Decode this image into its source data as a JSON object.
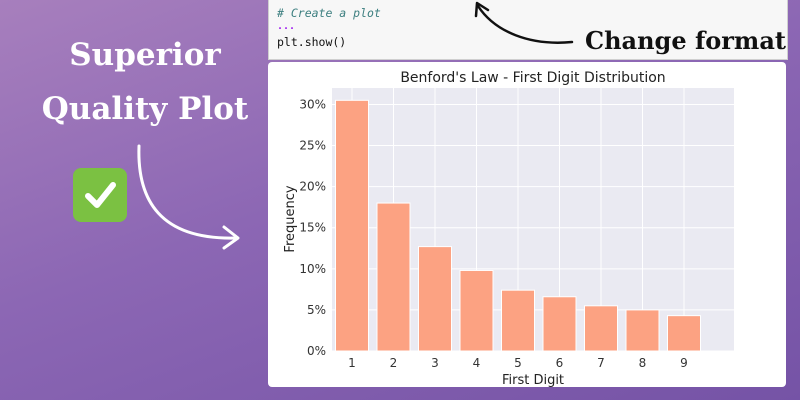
{
  "headline": {
    "line1": "Superior",
    "line2": "Quality Plot"
  },
  "badge": {
    "icon": "check-mark-icon",
    "color": "#7bc142"
  },
  "code": {
    "comment": "# Create a plot",
    "ellipsis": "...",
    "show_call": "plt.show()"
  },
  "annotation": {
    "change_format": "Change format"
  },
  "chart_data": {
    "type": "bar",
    "title": "Benford's Law - First Digit Distribution",
    "xlabel": "First Digit",
    "ylabel": "Frequency",
    "categories": [
      "1",
      "2",
      "3",
      "4",
      "5",
      "6",
      "7",
      "8",
      "9"
    ],
    "values": [
      0.305,
      0.18,
      0.127,
      0.098,
      0.074,
      0.066,
      0.055,
      0.05,
      0.043
    ],
    "ylim": [
      0,
      0.32
    ],
    "yticks": [
      0,
      0.05,
      0.1,
      0.15,
      0.2,
      0.25,
      0.3
    ],
    "ytick_labels": [
      "0%",
      "5%",
      "10%",
      "15%",
      "20%",
      "25%",
      "30%"
    ],
    "grid": true,
    "bar_color": "#fca282",
    "bar_edge_color": "#ffffff",
    "plot_background": "#eaeaf2"
  }
}
